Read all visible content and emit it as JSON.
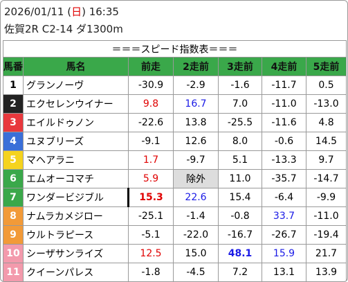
{
  "header": {
    "date_parts": [
      "2026/01/11 (",
      "日",
      ") 16:35"
    ],
    "race": "佐賀2R C2-14 ダ1300m"
  },
  "table": {
    "title": "＝＝＝スピード指数表＝＝＝",
    "columns": [
      "馬番",
      "馬名",
      "前走",
      "2走前",
      "3走前",
      "4走前",
      "5走前"
    ],
    "rows": [
      {
        "number": "1",
        "frame_color": "#ffffff",
        "number_color": "#000000",
        "name": "グランノーヴ",
        "values": [
          "-30.9",
          "-2.9",
          "-1.6",
          "-11.7",
          "0.5"
        ]
      },
      {
        "number": "2",
        "frame_color": "#222222",
        "number_color": "#ffffff",
        "name": "エクセレンウイナー",
        "values": [
          {
            "text": "9.8",
            "color": "#e00000"
          },
          {
            "text": "16.7",
            "color": "#1a1ae6"
          },
          "7.0",
          "-11.0",
          "-13.0"
        ]
      },
      {
        "number": "3",
        "frame_color": "#e8383d",
        "number_color": "#ffffff",
        "name": "エイルドゥノン",
        "values": [
          "-22.6",
          "13.8",
          "-25.5",
          "-11.6",
          "4.8"
        ]
      },
      {
        "number": "4",
        "frame_color": "#3a6fd8",
        "number_color": "#ffffff",
        "name": "ユヌブリーズ",
        "values": [
          "-9.1",
          "12.6",
          "8.0",
          "-0.6",
          "14.5"
        ]
      },
      {
        "number": "5",
        "frame_color": "#f5d31e",
        "number_color": "#ffffff",
        "name": "マヘアラニ",
        "values": [
          {
            "text": "1.7",
            "color": "#e00000"
          },
          "-9.7",
          "5.1",
          "-13.3",
          "9.7"
        ]
      },
      {
        "number": "6",
        "frame_color": "#3aa84a",
        "number_color": "#ffffff",
        "name": "エムオーコマチ",
        "values": [
          {
            "text": "5.9",
            "color": "#e00000"
          },
          {
            "text": "除外",
            "background": "#dddddd"
          },
          "11.0",
          "-35.7",
          "-14.7"
        ]
      },
      {
        "number": "7",
        "frame_color": "#3aa84a",
        "number_color": "#ffffff",
        "name": "ワンダービジブル",
        "values": [
          {
            "text": "15.3",
            "color": "#e00000",
            "bold": true
          },
          {
            "text": "22.6",
            "color": "#1a1ae6"
          },
          "15.4",
          "-6.4",
          "-9.9"
        ]
      },
      {
        "number": "8",
        "frame_color": "#f29a38",
        "number_color": "#ffffff",
        "name": "ナムラカメジロー",
        "values": [
          "-25.1",
          "-1.4",
          "-0.8",
          {
            "text": "33.7",
            "color": "#1a1ae6"
          },
          "-11.0"
        ]
      },
      {
        "number": "9",
        "frame_color": "#f29a38",
        "number_color": "#ffffff",
        "name": "ウルトラピース",
        "values": [
          "-5.1",
          "-22.0",
          "-16.7",
          "-26.7",
          "-19.4"
        ]
      },
      {
        "number": "10",
        "frame_color": "#f39aac",
        "number_color": "#ffffff",
        "name": "シーザサンライズ",
        "values": [
          {
            "text": "12.5",
            "color": "#e00000"
          },
          "15.0",
          {
            "text": "48.1",
            "color": "#1a1ae6",
            "bold": true
          },
          {
            "text": "15.9",
            "color": "#1a1ae6"
          },
          "21.7"
        ]
      },
      {
        "number": "11",
        "frame_color": "#f39aac",
        "number_color": "#ffffff",
        "name": "クイーンパレス",
        "values": [
          "-1.8",
          "-4.5",
          "7.2",
          "13.1",
          "13.9"
        ]
      }
    ]
  }
}
